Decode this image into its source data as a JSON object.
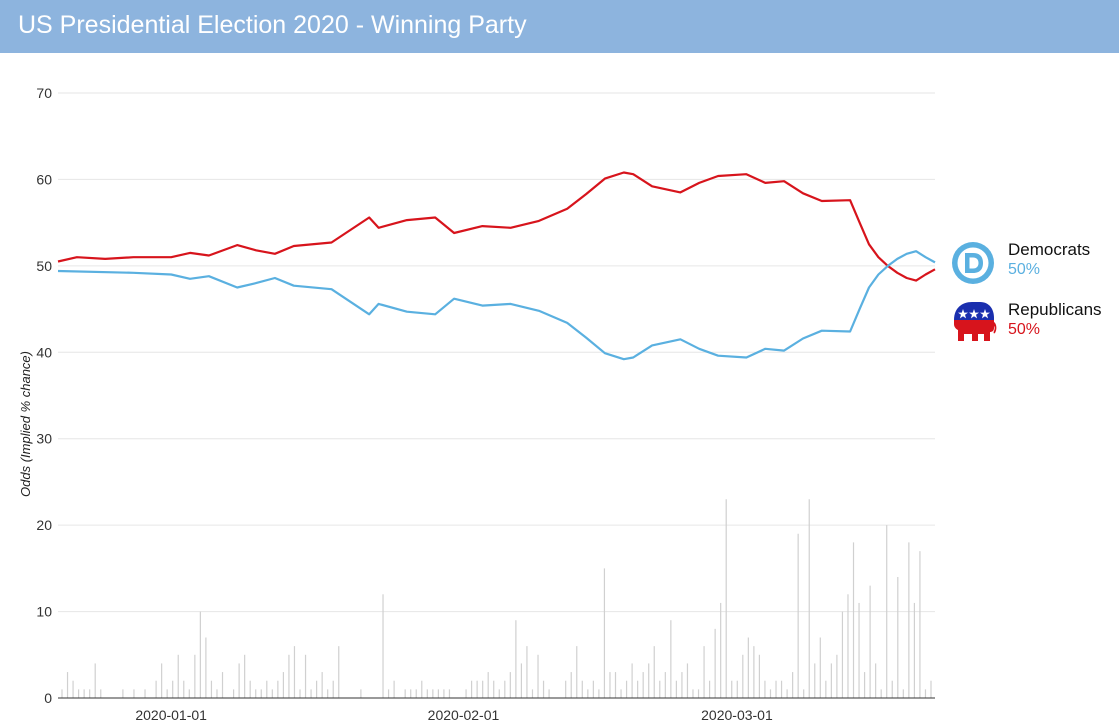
{
  "header": {
    "title": "US Presidential Election 2020 - Winning Party"
  },
  "legend": {
    "democrats": {
      "name": "Democrats",
      "value": "50%",
      "color": "#5ab0e0",
      "icon": "democratic-donkey-logo-icon"
    },
    "republicans": {
      "name": "Republicans",
      "value": "50%",
      "color": "#d7141c",
      "icon": "republican-elephant-logo-icon"
    }
  },
  "chart_data": {
    "type": "line",
    "title": "",
    "xlabel": "",
    "ylabel": "Odds (Implied % chance)",
    "ylim": [
      0,
      70
    ],
    "yticks": [
      0,
      10,
      20,
      30,
      40,
      50,
      60,
      70
    ],
    "xlim": [
      "2019-12-20",
      "2020-03-22"
    ],
    "xticks": [
      "2020-01-01",
      "2020-02-01",
      "2020-03-01"
    ],
    "grid": true,
    "legend_position": "right",
    "series": [
      {
        "name": "Republicans",
        "color": "#d7141c",
        "points": [
          [
            "2019-12-20",
            50.5
          ],
          [
            "2019-12-22",
            51.0
          ],
          [
            "2019-12-25",
            50.8
          ],
          [
            "2019-12-28",
            51.0
          ],
          [
            "2020-01-01",
            51.0
          ],
          [
            "2020-01-03",
            51.5
          ],
          [
            "2020-01-05",
            51.2
          ],
          [
            "2020-01-08",
            52.4
          ],
          [
            "2020-01-10",
            51.8
          ],
          [
            "2020-01-12",
            51.4
          ],
          [
            "2020-01-14",
            52.3
          ],
          [
            "2020-01-18",
            52.7
          ],
          [
            "2020-01-22",
            55.6
          ],
          [
            "2020-01-23",
            54.4
          ],
          [
            "2020-01-26",
            55.3
          ],
          [
            "2020-01-29",
            55.6
          ],
          [
            "2020-01-31",
            53.8
          ],
          [
            "2020-02-03",
            54.6
          ],
          [
            "2020-02-06",
            54.4
          ],
          [
            "2020-02-09",
            55.2
          ],
          [
            "2020-02-12",
            56.6
          ],
          [
            "2020-02-14",
            58.3
          ],
          [
            "2020-02-16",
            60.1
          ],
          [
            "2020-02-18",
            60.8
          ],
          [
            "2020-02-19",
            60.6
          ],
          [
            "2020-02-21",
            59.2
          ],
          [
            "2020-02-24",
            58.5
          ],
          [
            "2020-02-26",
            59.6
          ],
          [
            "2020-02-28",
            60.4
          ],
          [
            "2020-03-02",
            60.6
          ],
          [
            "2020-03-04",
            59.6
          ],
          [
            "2020-03-06",
            59.8
          ],
          [
            "2020-03-08",
            58.4
          ],
          [
            "2020-03-10",
            57.5
          ],
          [
            "2020-03-13",
            57.6
          ],
          [
            "2020-03-14",
            55.0
          ],
          [
            "2020-03-15",
            52.5
          ],
          [
            "2020-03-16",
            51.0
          ],
          [
            "2020-03-17",
            50.0
          ],
          [
            "2020-03-18",
            49.2
          ],
          [
            "2020-03-19",
            48.6
          ],
          [
            "2020-03-20",
            48.3
          ],
          [
            "2020-03-21",
            49.0
          ],
          [
            "2020-03-22",
            49.6
          ]
        ]
      },
      {
        "name": "Democrats",
        "color": "#5ab0e0",
        "points": [
          [
            "2019-12-20",
            49.4
          ],
          [
            "2019-12-28",
            49.2
          ],
          [
            "2020-01-01",
            49.0
          ],
          [
            "2020-01-03",
            48.5
          ],
          [
            "2020-01-05",
            48.8
          ],
          [
            "2020-01-08",
            47.5
          ],
          [
            "2020-01-10",
            48.0
          ],
          [
            "2020-01-12",
            48.6
          ],
          [
            "2020-01-14",
            47.7
          ],
          [
            "2020-01-18",
            47.3
          ],
          [
            "2020-01-22",
            44.4
          ],
          [
            "2020-01-23",
            45.6
          ],
          [
            "2020-01-26",
            44.7
          ],
          [
            "2020-01-29",
            44.4
          ],
          [
            "2020-01-31",
            46.2
          ],
          [
            "2020-02-03",
            45.4
          ],
          [
            "2020-02-06",
            45.6
          ],
          [
            "2020-02-09",
            44.8
          ],
          [
            "2020-02-12",
            43.4
          ],
          [
            "2020-02-14",
            41.7
          ],
          [
            "2020-02-16",
            39.9
          ],
          [
            "2020-02-18",
            39.2
          ],
          [
            "2020-02-19",
            39.4
          ],
          [
            "2020-02-21",
            40.8
          ],
          [
            "2020-02-24",
            41.5
          ],
          [
            "2020-02-26",
            40.4
          ],
          [
            "2020-02-28",
            39.6
          ],
          [
            "2020-03-02",
            39.4
          ],
          [
            "2020-03-04",
            40.4
          ],
          [
            "2020-03-06",
            40.2
          ],
          [
            "2020-03-08",
            41.6
          ],
          [
            "2020-03-10",
            42.5
          ],
          [
            "2020-03-13",
            42.4
          ],
          [
            "2020-03-14",
            45.0
          ],
          [
            "2020-03-15",
            47.5
          ],
          [
            "2020-03-16",
            49.0
          ],
          [
            "2020-03-17",
            50.0
          ],
          [
            "2020-03-18",
            50.8
          ],
          [
            "2020-03-19",
            51.4
          ],
          [
            "2020-03-20",
            51.7
          ],
          [
            "2020-03-21",
            51.0
          ],
          [
            "2020-03-22",
            50.4
          ]
        ]
      }
    ],
    "volume": {
      "name": "",
      "color": "#d0d0d0",
      "values": [
        1,
        3,
        2,
        1,
        1,
        1,
        4,
        1,
        0,
        0,
        0,
        1,
        0,
        1,
        0,
        1,
        0,
        2,
        4,
        1,
        2,
        5,
        2,
        1,
        5,
        10,
        7,
        2,
        1,
        3,
        0,
        1,
        4,
        5,
        2,
        1,
        1,
        2,
        1,
        2,
        3,
        5,
        6,
        1,
        5,
        1,
        2,
        3,
        1,
        2,
        6,
        0,
        0,
        0,
        1,
        0,
        0,
        0,
        12,
        1,
        2,
        0,
        1,
        1,
        1,
        2,
        1,
        1,
        1,
        1,
        1,
        0,
        0,
        1,
        2,
        2,
        2,
        3,
        2,
        1,
        2,
        3,
        9,
        4,
        6,
        1,
        5,
        2,
        1,
        0,
        0,
        2,
        3,
        6,
        2,
        1,
        2,
        1,
        15,
        3,
        3,
        1,
        2,
        4,
        2,
        3,
        4,
        6,
        2,
        3,
        9,
        2,
        3,
        4,
        1,
        1,
        6,
        2,
        8,
        11,
        23,
        2,
        2,
        5,
        7,
        6,
        5,
        2,
        1,
        2,
        2,
        1,
        3,
        19,
        1,
        23,
        4,
        7,
        2,
        4,
        5,
        10,
        12,
        18,
        11,
        3,
        13,
        4,
        1,
        20,
        2,
        14,
        1,
        18,
        11,
        17,
        1,
        2
      ]
    }
  }
}
